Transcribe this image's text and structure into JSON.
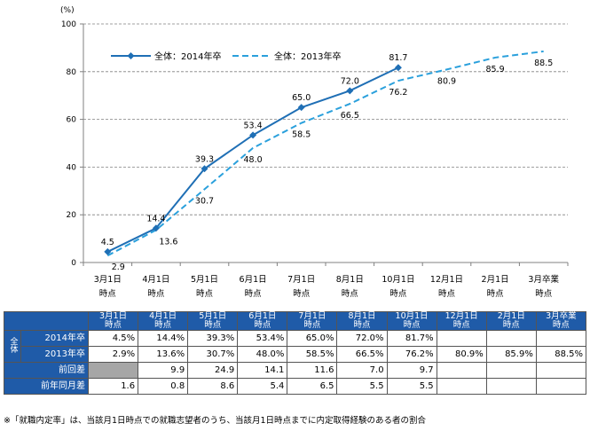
{
  "chart_data": {
    "type": "line",
    "y_unit": "(%)",
    "ylim": [
      0,
      100
    ],
    "yticks": [
      0,
      20,
      40,
      60,
      80,
      100
    ],
    "grid": "horizontal dashed",
    "legend_position": "top-left",
    "categories": [
      [
        "3月1日",
        "時点"
      ],
      [
        "4月1日",
        "時点"
      ],
      [
        "5月1日",
        "時点"
      ],
      [
        "6月1日",
        "時点"
      ],
      [
        "7月1日",
        "時点"
      ],
      [
        "8月1日",
        "時点"
      ],
      [
        "10月1日",
        "時点"
      ],
      [
        "12月1日",
        "時点"
      ],
      [
        "2月1日",
        "時点"
      ],
      [
        "3月卒業",
        "時点"
      ]
    ],
    "series": [
      {
        "name": "全体：2014年卒",
        "values": [
          4.5,
          14.4,
          39.3,
          53.4,
          65.0,
          72.0,
          81.7,
          null,
          null,
          null
        ],
        "labels": [
          "4.5",
          "14.4",
          "39.3",
          "53.4",
          "65.0",
          "72.0",
          "81.7",
          "",
          "",
          ""
        ],
        "color": "#1f6fb5",
        "style": "solid-diamond"
      },
      {
        "name": "全体：2013年卒",
        "values": [
          2.9,
          13.6,
          30.7,
          48.0,
          58.5,
          66.5,
          76.2,
          80.9,
          85.9,
          88.5
        ],
        "labels": [
          "2.9",
          "13.6",
          "30.7",
          "48.0",
          "58.5",
          "66.5",
          "76.2",
          "80.9",
          "85.9",
          "88.5"
        ],
        "color": "#2aa0dc",
        "style": "dashed"
      }
    ]
  },
  "table": {
    "group_label": "全体",
    "rows": [
      {
        "label": "2014年卒",
        "cells": [
          "4.5%",
          "14.4%",
          "39.3%",
          "53.4%",
          "65.0%",
          "72.0%",
          "81.7%",
          "",
          "",
          ""
        ]
      },
      {
        "label": "2013年卒",
        "cells": [
          "2.9%",
          "13.6%",
          "30.7%",
          "48.0%",
          "58.5%",
          "66.5%",
          "76.2%",
          "80.9%",
          "85.9%",
          "88.5%"
        ]
      },
      {
        "label": "前回差",
        "cells": [
          "",
          "9.9",
          "24.9",
          "14.1",
          "11.6",
          "7.0",
          "9.7",
          "",
          "",
          ""
        ]
      },
      {
        "label": "前年同月差",
        "cells": [
          "1.6",
          "0.8",
          "8.6",
          "5.4",
          "6.5",
          "5.5",
          "5.5",
          "",
          "",
          ""
        ]
      }
    ]
  },
  "footnote": "※「就職内定率」は、当該月1日時点での就職志望者のうち、当該月1日時点までに内定取得経験のある者の割合"
}
